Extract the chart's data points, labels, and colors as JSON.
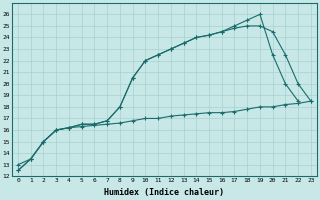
{
  "xlabel": "Humidex (Indice chaleur)",
  "background_color": "#c8e8e8",
  "line_color": "#1a6b6b",
  "grid_color": "#a8d0d0",
  "xlim": [
    -0.5,
    23.5
  ],
  "ylim": [
    12,
    27
  ],
  "xticks": [
    0,
    1,
    2,
    3,
    4,
    5,
    6,
    7,
    8,
    9,
    10,
    11,
    12,
    13,
    14,
    15,
    16,
    17,
    18,
    19,
    20,
    21,
    22,
    23
  ],
  "yticks": [
    12,
    13,
    14,
    15,
    16,
    17,
    18,
    19,
    20,
    21,
    22,
    23,
    24,
    25,
    26
  ],
  "series": [
    {
      "x": [
        0,
        1,
        2,
        3,
        4,
        5,
        6,
        7,
        8,
        9,
        10,
        11,
        12,
        13,
        14,
        15,
        16,
        17,
        18,
        19,
        20,
        21,
        22
      ],
      "y": [
        12.5,
        13.5,
        15.0,
        16.0,
        16.2,
        16.5,
        16.5,
        16.8,
        18.0,
        20.5,
        22.0,
        22.5,
        23.0,
        23.5,
        24.0,
        24.2,
        24.5,
        25.0,
        25.5,
        26.0,
        22.5,
        20.0,
        18.5
      ]
    },
    {
      "x": [
        0,
        1,
        2,
        3,
        4,
        5,
        6,
        7,
        8,
        9,
        10,
        11,
        12,
        13,
        14,
        15,
        16,
        17,
        18,
        19,
        20,
        21,
        22,
        23
      ],
      "y": [
        12.5,
        13.5,
        15.0,
        16.0,
        16.2,
        16.5,
        16.5,
        16.8,
        18.0,
        20.5,
        22.0,
        22.5,
        23.0,
        23.5,
        24.0,
        24.2,
        24.5,
        24.8,
        25.0,
        25.0,
        24.5,
        22.5,
        20.0,
        18.5
      ]
    },
    {
      "x": [
        0,
        1,
        2,
        3,
        4,
        5,
        6,
        7,
        8,
        9,
        10,
        11,
        12,
        13,
        14,
        15,
        16,
        17,
        18,
        19,
        20,
        21,
        22,
        23
      ],
      "y": [
        13.0,
        13.5,
        15.0,
        16.0,
        16.2,
        16.3,
        16.4,
        16.5,
        16.6,
        16.8,
        17.0,
        17.0,
        17.2,
        17.3,
        17.4,
        17.5,
        17.5,
        17.6,
        17.8,
        18.0,
        18.0,
        18.2,
        18.3,
        18.5
      ]
    }
  ]
}
